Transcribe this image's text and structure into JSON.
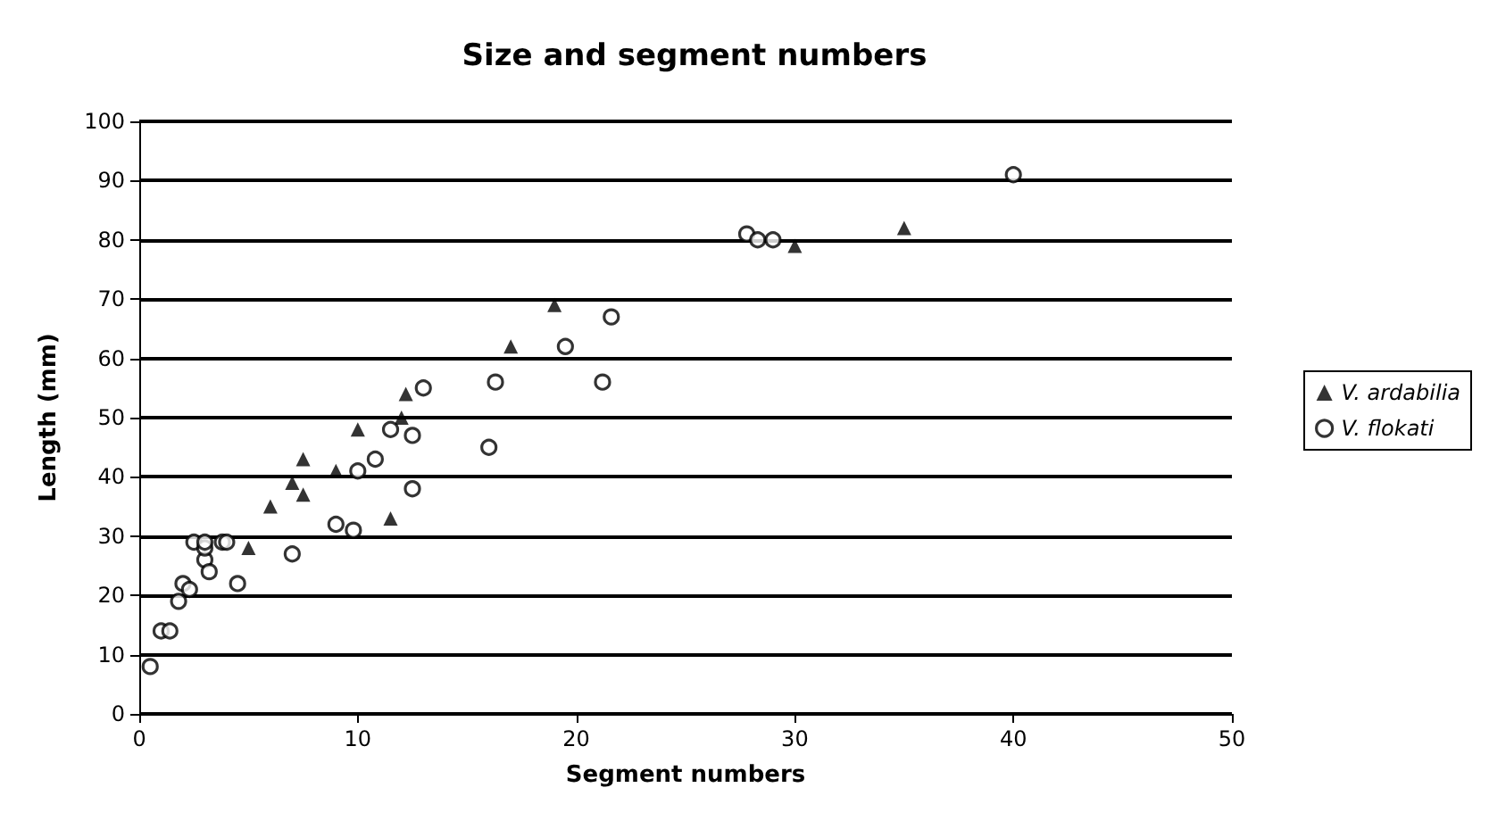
{
  "chart_data": {
    "type": "scatter",
    "title": "Size and segment numbers",
    "xlabel": "Segment numbers",
    "ylabel": "Length (mm)",
    "xlim": [
      0,
      50
    ],
    "xticks": [
      0,
      10,
      20,
      30,
      40,
      50
    ],
    "ylim": [
      0,
      100
    ],
    "yticks": [
      0,
      10,
      20,
      30,
      40,
      50,
      60,
      70,
      80,
      90,
      100
    ],
    "grid": "y",
    "legend": "right",
    "series": [
      {
        "name": "V. ardabilia",
        "color": "#000000",
        "marker": "triangle",
        "x": [
          5,
          6,
          7,
          7.5,
          7.5,
          9,
          10,
          11.5,
          12,
          12.2,
          17,
          19,
          30,
          35
        ],
        "values": [
          28,
          35,
          39,
          37,
          43,
          41,
          48,
          33,
          50,
          54,
          62,
          69,
          79,
          82
        ]
      },
      {
        "name": "V. flokati",
        "color": "#000000",
        "marker": "circle",
        "x": [
          0.5,
          1,
          1.4,
          1.8,
          2,
          2.3,
          2.5,
          3,
          3,
          3.2,
          3,
          3.8,
          4,
          4.5,
          7,
          9,
          9.8,
          10,
          10.8,
          11.5,
          12.5,
          12.5,
          13,
          16,
          16.3,
          19.5,
          21.2,
          21.6,
          27.8,
          28.3,
          29,
          40
        ],
        "values": [
          8,
          14,
          14,
          19,
          22,
          21,
          29,
          26,
          28,
          24,
          29,
          29,
          29,
          22,
          27,
          32,
          31,
          41,
          43,
          48,
          47,
          38,
          55,
          45,
          56,
          62,
          56,
          67,
          81,
          80,
          80,
          91
        ]
      }
    ]
  }
}
